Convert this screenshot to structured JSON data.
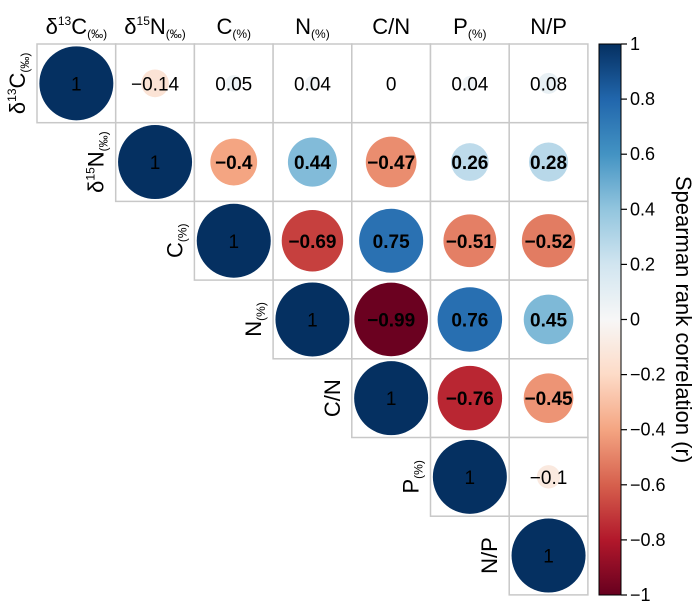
{
  "chart_data": {
    "type": "heatmap",
    "subtype": "correlation-matrix-upper-triangle",
    "variables": [
      {
        "main": "δ",
        "sup": "13",
        "letter": "C",
        "sub": "(‰)"
      },
      {
        "main": "δ",
        "sup": "15",
        "letter": "N",
        "sub": "(‰)"
      },
      {
        "main": "",
        "sup": "",
        "letter": "C",
        "sub": "(%)"
      },
      {
        "main": "",
        "sup": "",
        "letter": "N",
        "sub": "(%)"
      },
      {
        "main": "",
        "sup": "",
        "letter": "C/N",
        "sub": ""
      },
      {
        "main": "",
        "sup": "",
        "letter": "P",
        "sub": "(%)"
      },
      {
        "main": "",
        "sup": "",
        "letter": "N/P",
        "sub": ""
      }
    ],
    "matrix": [
      [
        1,
        -0.14,
        0.05,
        0.04,
        0,
        0.04,
        0.08
      ],
      [
        null,
        1,
        -0.4,
        0.44,
        -0.47,
        0.26,
        0.28
      ],
      [
        null,
        null,
        1,
        -0.69,
        0.75,
        -0.51,
        -0.52
      ],
      [
        null,
        null,
        null,
        1,
        -0.99,
        0.76,
        0.45
      ],
      [
        null,
        null,
        null,
        null,
        1,
        -0.76,
        -0.45
      ],
      [
        null,
        null,
        null,
        null,
        null,
        1,
        -0.1
      ],
      [
        null,
        null,
        null,
        null,
        null,
        null,
        1
      ]
    ],
    "labels": [
      [
        "1",
        "−0.14",
        "0.05",
        "0.04",
        "0",
        "0.04",
        "0.08"
      ],
      [
        null,
        "1",
        "−0.4",
        "0.44",
        "−0.47",
        "0.26",
        "0.28"
      ],
      [
        null,
        null,
        "1",
        "−0.69",
        "0.75",
        "−0.51",
        "−0.52"
      ],
      [
        null,
        null,
        null,
        "1",
        "−0.99",
        "0.76",
        "0.45"
      ],
      [
        null,
        null,
        null,
        null,
        "1",
        "−0.76",
        "−0.45"
      ],
      [
        null,
        null,
        null,
        null,
        null,
        "1",
        "−0.1"
      ],
      [
        null,
        null,
        null,
        null,
        null,
        null,
        "1"
      ]
    ],
    "bold": [
      [
        false,
        false,
        false,
        false,
        false,
        false,
        false
      ],
      [
        null,
        false,
        true,
        true,
        true,
        true,
        true
      ],
      [
        null,
        null,
        false,
        true,
        true,
        true,
        true
      ],
      [
        null,
        null,
        null,
        false,
        true,
        true,
        true
      ],
      [
        null,
        null,
        null,
        null,
        false,
        true,
        true
      ],
      [
        null,
        null,
        null,
        null,
        null,
        false,
        false
      ],
      [
        null,
        null,
        null,
        null,
        null,
        null,
        false
      ]
    ],
    "colorbar": {
      "title": "Spearman rank correlation (r)",
      "range": [
        -1,
        1
      ],
      "ticks": [
        "1",
        "0.8",
        "0.6",
        "0.4",
        "0.2",
        "0",
        "−0.2",
        "−0.4",
        "−0.6",
        "−0.8",
        "−1"
      ],
      "colors": {
        "neg_1": "#67001f",
        "neg_08": "#b2182b",
        "neg_06": "#d6604d",
        "neg_04": "#f4a582",
        "neg_02": "#fddbc7",
        "zero": "#f7f7f7",
        "pos_02": "#d1e5f0",
        "pos_04": "#92c5de",
        "pos_06": "#4393c3",
        "pos_08": "#2166ac",
        "pos_1": "#053061"
      }
    }
  }
}
